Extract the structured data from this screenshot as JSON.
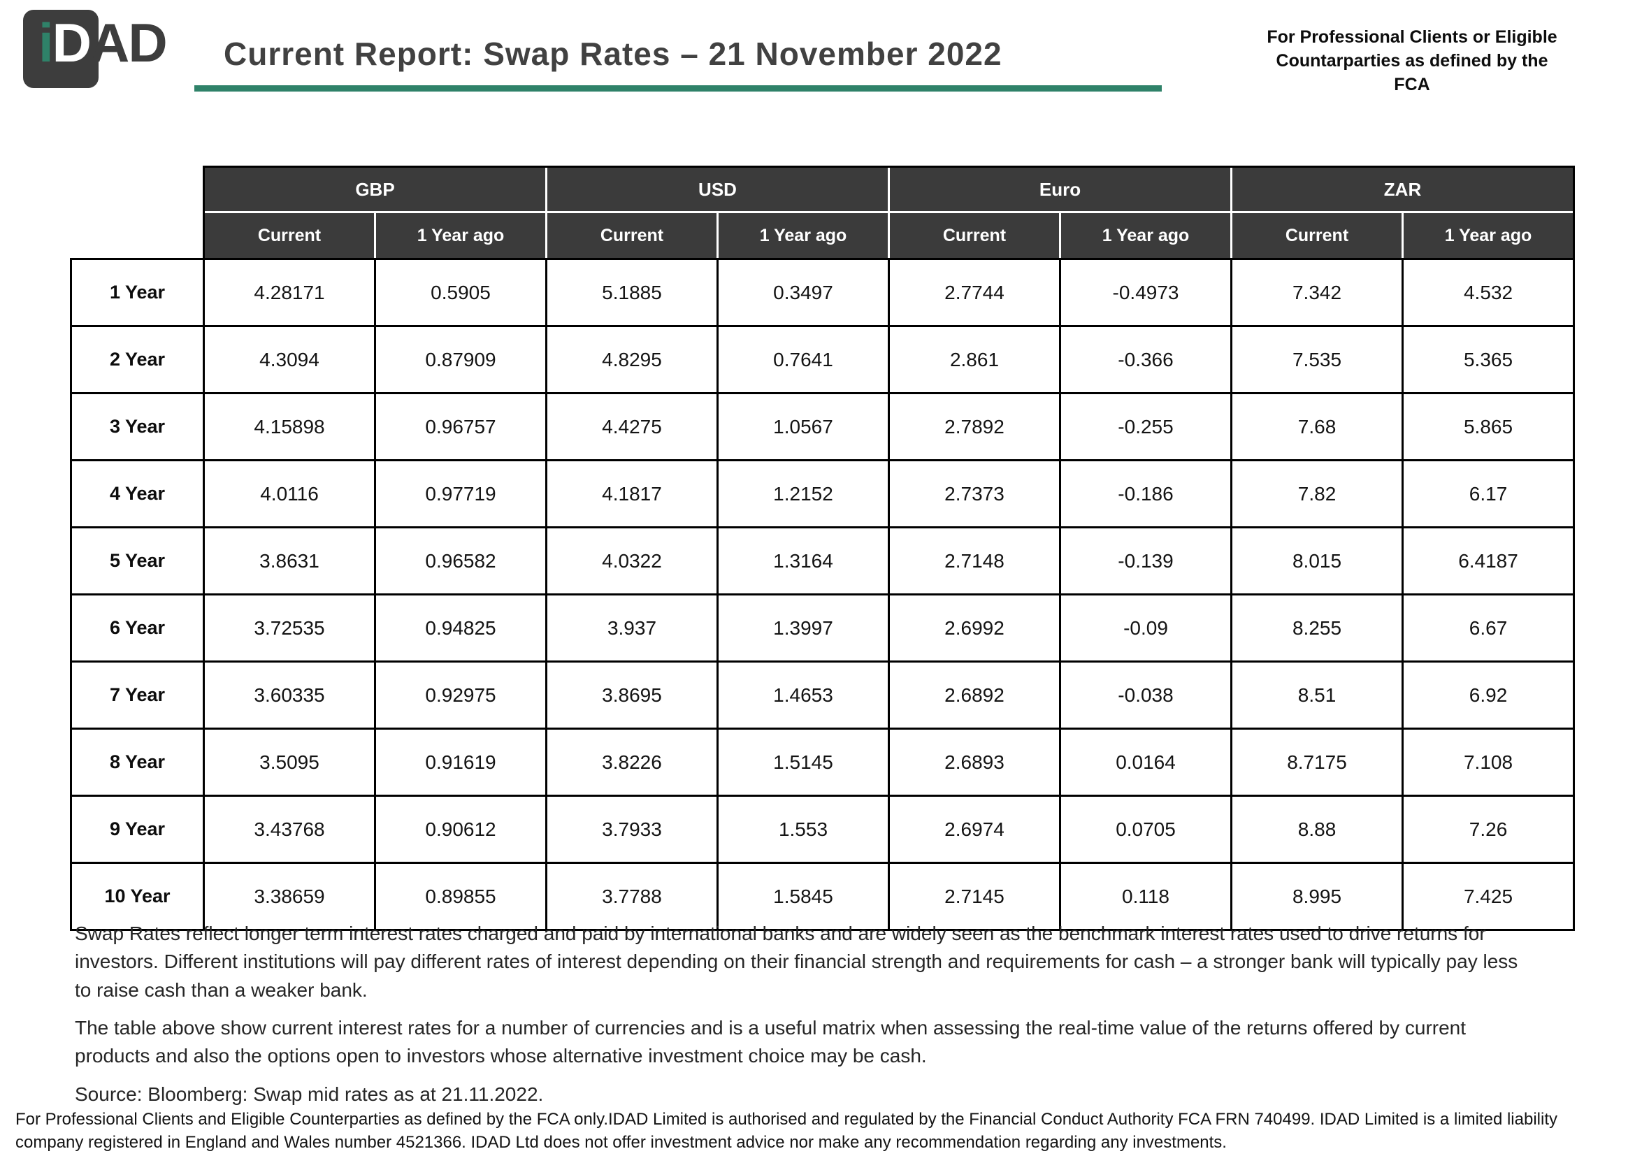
{
  "logo": {
    "i": "i",
    "d": "D",
    "ad": "AD"
  },
  "header": {
    "title": "Current Report: Swap Rates – 21 November 2022",
    "fca_line1": "For Professional Clients or Eligible",
    "fca_line2": "Countarparties as defined by the FCA"
  },
  "colors": {
    "accent_teal": "#2f8269",
    "header_dark": "#3b3b3b"
  },
  "table": {
    "groups": [
      "GBP",
      "USD",
      "Euro",
      "ZAR"
    ],
    "sub": [
      "Current",
      "1 Year ago"
    ],
    "rows": [
      {
        "label": "1 Year",
        "values": [
          "4.28171",
          "0.5905",
          "5.1885",
          "0.3497",
          "2.7744",
          "-0.4973",
          "7.342",
          "4.532"
        ]
      },
      {
        "label": "2 Year",
        "values": [
          "4.3094",
          "0.87909",
          "4.8295",
          "0.7641",
          "2.861",
          "-0.366",
          "7.535",
          "5.365"
        ]
      },
      {
        "label": "3 Year",
        "values": [
          "4.15898",
          "0.96757",
          "4.4275",
          "1.0567",
          "2.7892",
          "-0.255",
          "7.68",
          "5.865"
        ]
      },
      {
        "label": "4 Year",
        "values": [
          "4.0116",
          "0.97719",
          "4.1817",
          "1.2152",
          "2.7373",
          "-0.186",
          "7.82",
          "6.17"
        ]
      },
      {
        "label": "5 Year",
        "values": [
          "3.8631",
          "0.96582",
          "4.0322",
          "1.3164",
          "2.7148",
          "-0.139",
          "8.015",
          "6.4187"
        ]
      },
      {
        "label": "6 Year",
        "values": [
          "3.72535",
          "0.94825",
          "3.937",
          "1.3997",
          "2.6992",
          "-0.09",
          "8.255",
          "6.67"
        ]
      },
      {
        "label": "7 Year",
        "values": [
          "3.60335",
          "0.92975",
          "3.8695",
          "1.4653",
          "2.6892",
          "-0.038",
          "8.51",
          "6.92"
        ]
      },
      {
        "label": "8 Year",
        "values": [
          "3.5095",
          "0.91619",
          "3.8226",
          "1.5145",
          "2.6893",
          "0.0164",
          "8.7175",
          "7.108"
        ]
      },
      {
        "label": "9 Year",
        "values": [
          "3.43768",
          "0.90612",
          "3.7933",
          "1.553",
          "2.6974",
          "0.0705",
          "8.88",
          "7.26"
        ]
      },
      {
        "label": "10 Year",
        "values": [
          "3.38659",
          "0.89855",
          "3.7788",
          "1.5845",
          "2.7145",
          "0.118",
          "8.995",
          "7.425"
        ]
      }
    ]
  },
  "notes": {
    "p1": "Swap Rates reflect longer term interest rates charged and paid by international banks and are widely seen as the benchmark interest rates used to drive returns for investors. Different institutions will pay different rates of interest depending on their financial strength and requirements for cash – a stronger bank will typically pay less to raise cash than a weaker bank.",
    "p2": "The table above show current interest rates for a number of currencies and is a useful matrix when assessing the real-time value of the returns offered by current products and also the options open to investors whose alternative investment choice may be cash.",
    "source": "Source: Bloomberg: Swap mid rates as at 21.11.2022."
  },
  "footer": {
    "text": "For Professional Clients and Eligible Counterparties as defined by the FCA only.IDAD Limited is authorised and regulated by the Financial Conduct Authority FCA FRN 740499. IDAD Limited is a limited liability company registered in England and Wales number 4521366. IDAD Ltd does not offer investment advice nor make any recommendation regarding any investments."
  }
}
